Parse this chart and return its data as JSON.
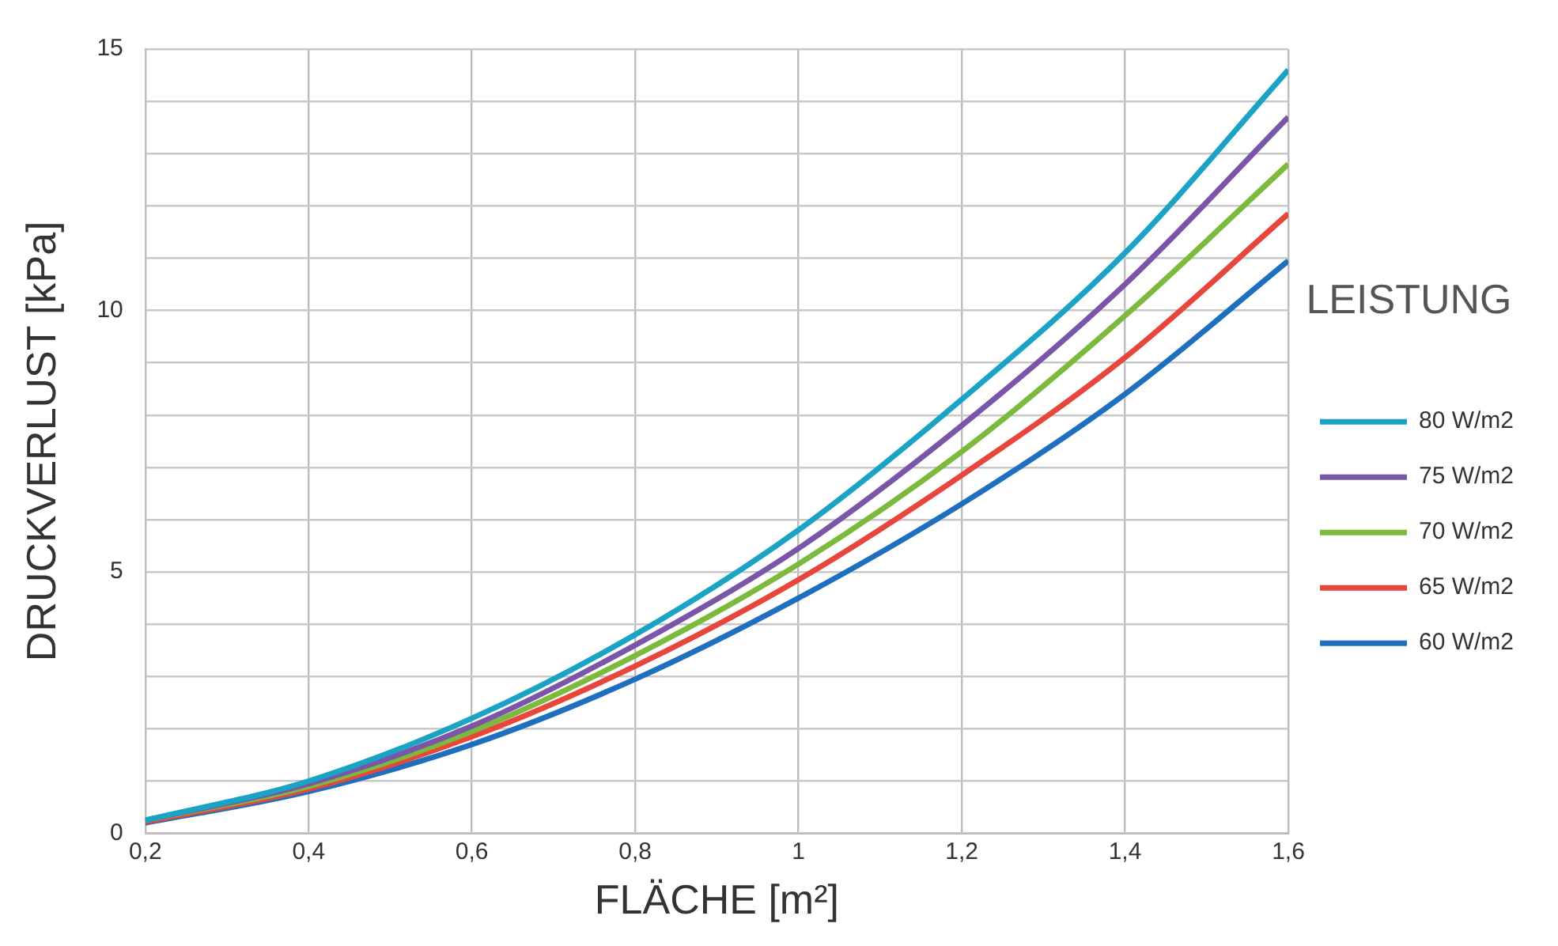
{
  "chart_data": {
    "type": "line",
    "xlabel": "FLÄCHE [m²]",
    "ylabel": "DRUCKVERLUST [kPa]",
    "legend_title": "LEISTUNG",
    "legend": "right",
    "grid": true,
    "marker": "none",
    "line_style": "solid",
    "x": [
      0.2,
      0.4,
      0.6,
      0.8,
      1.0,
      1.2,
      1.4,
      1.6
    ],
    "xlim": [
      0.2,
      1.6
    ],
    "xticks": [
      {
        "value": 0.2,
        "label": "0,2"
      },
      {
        "value": 0.4,
        "label": "0,4"
      },
      {
        "value": 0.6,
        "label": "0,6"
      },
      {
        "value": 0.8,
        "label": "0,8"
      },
      1,
      {
        "value": 1.2,
        "label": "1,2"
      },
      {
        "value": 1.4,
        "label": "1,4"
      },
      {
        "value": 1.6,
        "label": "1,6"
      }
    ],
    "ylim": [
      0,
      15
    ],
    "yticks": [
      0,
      {
        "value": 1,
        "label": null
      },
      {
        "value": 2,
        "label": null
      },
      {
        "value": 3,
        "label": null
      },
      {
        "value": 4,
        "label": null
      },
      5,
      {
        "value": 6,
        "label": null
      },
      {
        "value": 7,
        "label": null
      },
      {
        "value": 8,
        "label": null
      },
      {
        "value": 9,
        "label": null
      },
      10,
      {
        "value": 11,
        "label": null
      },
      {
        "value": 12,
        "label": null
      },
      {
        "value": 13,
        "label": null
      },
      {
        "value": 14,
        "label": null
      },
      15
    ],
    "series": [
      {
        "name": "80 W/m2",
        "color": "#1ba3c6",
        "values": [
          0.25,
          1.0,
          2.2,
          3.8,
          5.8,
          8.3,
          11.1,
          14.6
        ]
      },
      {
        "name": "75 W/m2",
        "color": "#7b55a8",
        "values": [
          0.25,
          0.95,
          2.05,
          3.6,
          5.45,
          7.8,
          10.5,
          13.7
        ]
      },
      {
        "name": "70 W/m2",
        "color": "#7cba3d",
        "values": [
          0.25,
          0.9,
          1.95,
          3.4,
          5.15,
          7.3,
          9.9,
          12.8
        ]
      },
      {
        "name": "65 W/m2",
        "color": "#e8453c",
        "values": [
          0.22,
          0.85,
          1.85,
          3.2,
          4.85,
          6.85,
          9.1,
          11.85
        ]
      },
      {
        "name": "60 W/m2",
        "color": "#1f6fbf",
        "values": [
          0.2,
          0.8,
          1.7,
          2.95,
          4.5,
          6.3,
          8.4,
          10.95
        ]
      }
    ]
  }
}
